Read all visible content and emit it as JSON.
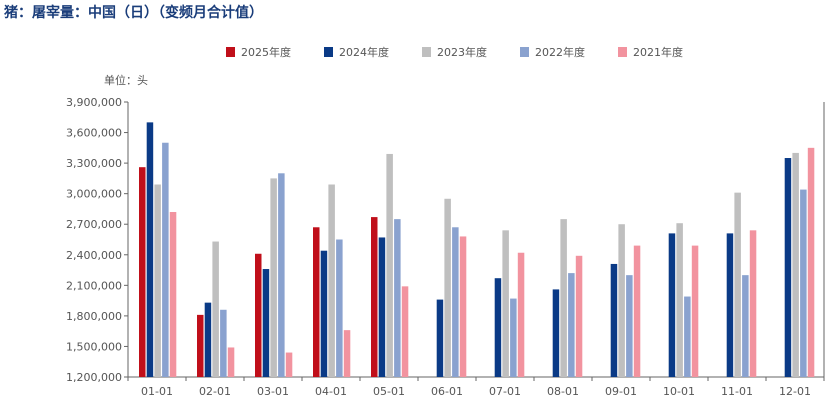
{
  "title": "猪：屠宰量：中国（日）（变频月合计值）",
  "chart_data": {
    "type": "bar",
    "title": "猪：屠宰量：中国（日）（变频月合计值）",
    "unit_label": "单位：头",
    "categories": [
      "01-01",
      "02-01",
      "03-01",
      "04-01",
      "05-01",
      "06-01",
      "07-01",
      "08-01",
      "09-01",
      "10-01",
      "11-01",
      "12-01"
    ],
    "ylim": [
      1200000,
      3900000
    ],
    "yticks": [
      1200000,
      1500000,
      1800000,
      2100000,
      2400000,
      2700000,
      3000000,
      3300000,
      3600000,
      3900000
    ],
    "ytick_labels": [
      "1,200,000",
      "1,500,000",
      "1,800,000",
      "2,100,000",
      "2,400,000",
      "2,700,000",
      "3,000,000",
      "3,300,000",
      "3,600,000",
      "3,900,000"
    ],
    "legend_position": "top",
    "grid": false,
    "series": [
      {
        "name": "2025年度",
        "color": "#c00f1a",
        "values": [
          3260000,
          1810000,
          2410000,
          2670000,
          2770000,
          null,
          null,
          null,
          null,
          null,
          null,
          null
        ]
      },
      {
        "name": "2024年度",
        "color": "#0a3a86",
        "values": [
          3700000,
          1930000,
          2260000,
          2440000,
          2570000,
          1960000,
          2170000,
          2060000,
          2310000,
          2610000,
          2610000,
          3350000
        ]
      },
      {
        "name": "2023年度",
        "color": "#bfbfbf",
        "values": [
          3090000,
          2530000,
          3150000,
          3090000,
          3390000,
          2950000,
          2640000,
          2750000,
          2700000,
          2710000,
          3010000,
          3400000
        ]
      },
      {
        "name": "2022年度",
        "color": "#8aa2cf",
        "values": [
          3500000,
          1860000,
          3200000,
          2550000,
          2750000,
          2670000,
          1970000,
          2220000,
          2200000,
          1990000,
          2200000,
          3040000
        ]
      },
      {
        "name": "2021年度",
        "color": "#f2939f",
        "values": [
          2820000,
          1490000,
          1440000,
          1660000,
          2090000,
          2580000,
          2420000,
          2390000,
          2490000,
          2490000,
          2640000,
          3450000
        ]
      }
    ]
  }
}
